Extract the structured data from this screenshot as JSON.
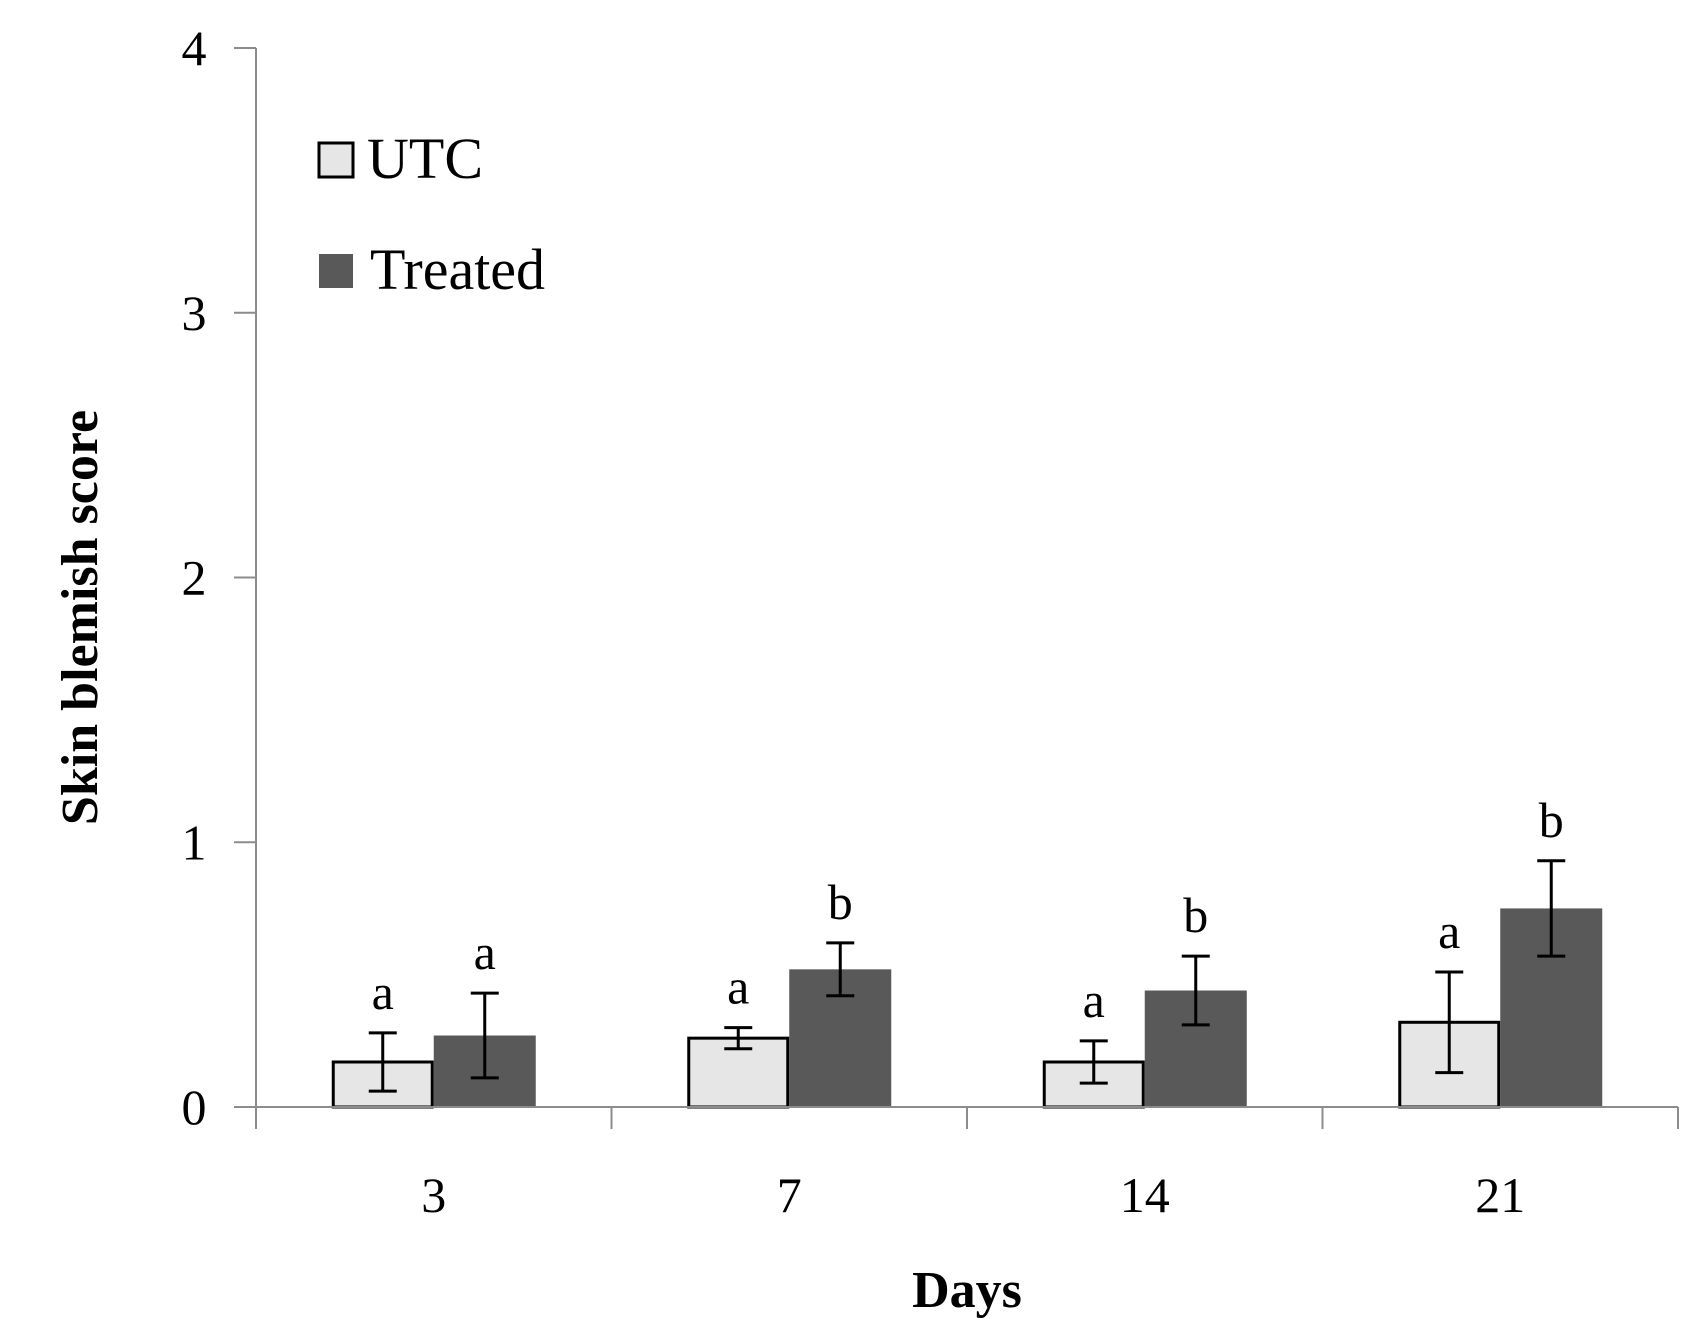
{
  "chart_data": {
    "type": "bar",
    "title": "",
    "xlabel": "Days",
    "ylabel": "Skin blemish score",
    "ylim": [
      0,
      4
    ],
    "yticks": [
      "0",
      "1",
      "2",
      "3",
      "4"
    ],
    "categories": [
      "3",
      "7",
      "14",
      "21"
    ],
    "series": [
      {
        "name": "UTC",
        "color": "#e6e6e6",
        "edge": "#000000",
        "values": [
          0.17,
          0.26,
          0.17,
          0.32
        ],
        "errors": [
          0.11,
          0.04,
          0.08,
          0.19
        ],
        "letters": [
          "a",
          "a",
          "a",
          "a"
        ]
      },
      {
        "name": "Treated",
        "color": "#595959",
        "edge": "#595959",
        "values": [
          0.27,
          0.52,
          0.44,
          0.75
        ],
        "errors": [
          0.16,
          0.1,
          0.13,
          0.18
        ],
        "letters": [
          "a",
          "b",
          "b",
          "b"
        ]
      }
    ],
    "legend": {
      "position": "top-left",
      "entries": [
        "UTC",
        "Treated"
      ]
    },
    "grid": false
  }
}
